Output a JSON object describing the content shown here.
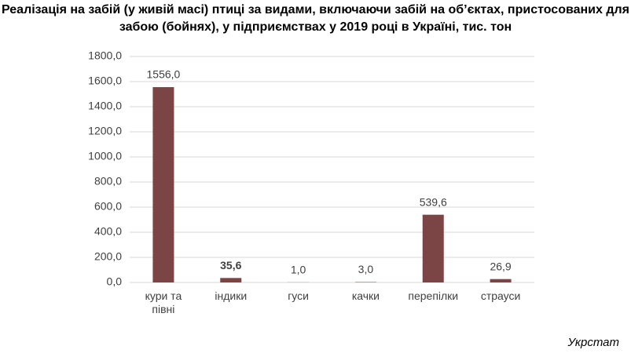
{
  "chart_data": {
    "type": "bar",
    "title": "Реалізація на забій (у живій масі) птиці за видами, включаючи забій на об’єктах, пристосованих для забою (бойнях), у підприємствах у 2019 році в Україні, тис. тон",
    "categories": [
      "кури та півні",
      "індики",
      "гуси",
      "качки",
      "перепілки",
      "страуси"
    ],
    "values": [
      1556.0,
      35.6,
      1.0,
      3.0,
      539.6,
      26.9
    ],
    "value_labels": [
      "1556,0",
      "35,6",
      "1,0",
      "3,0",
      "539,6",
      "26,9"
    ],
    "color": "#7b4546",
    "ylim": [
      0,
      1800
    ],
    "yticks": [
      {
        "value": 0,
        "label": "0,0"
      },
      {
        "value": 200,
        "label": "200,0"
      },
      {
        "value": 400,
        "label": "400,0"
      },
      {
        "value": 600,
        "label": "600,0"
      },
      {
        "value": 800,
        "label": "800,0"
      },
      {
        "value": 1000,
        "label": "1000,0"
      },
      {
        "value": 1200,
        "label": "1200,0"
      },
      {
        "value": 1400,
        "label": "1400,0"
      },
      {
        "value": 1600,
        "label": "1600,0"
      },
      {
        "value": 1800,
        "label": "1800,0"
      }
    ],
    "grid": true,
    "source": "Укрстат"
  }
}
